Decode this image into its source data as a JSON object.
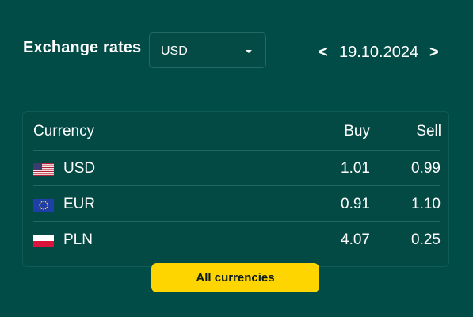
{
  "header": {
    "title": "Exchange rates",
    "currency_select": {
      "value": "USD"
    },
    "date_nav": {
      "prev": "<",
      "date": "19.10.2024",
      "next": ">"
    }
  },
  "table": {
    "columns": [
      "Currency",
      "Buy",
      "Sell"
    ],
    "rows": [
      {
        "code": "USD",
        "buy": "1.01",
        "sell": "0.99",
        "flag": "us-flag-icon"
      },
      {
        "code": "EUR",
        "buy": "0.91",
        "sell": "1.10",
        "flag": "eu-flag-icon"
      },
      {
        "code": "PLN",
        "buy": "4.07",
        "sell": "0.25",
        "flag": "pl-flag-icon"
      }
    ]
  },
  "footer": {
    "all_button": "All currencies"
  },
  "colors": {
    "background": "#024c47",
    "accent": "#ffd500",
    "text": "#ffffff"
  }
}
